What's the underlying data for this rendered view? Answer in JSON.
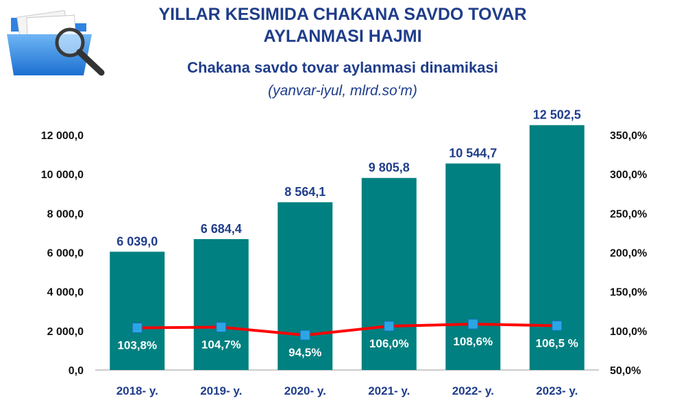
{
  "header": {
    "title_line1": "YILLAR KESIMIDA CHAKANA SAVDO TOVAR",
    "title_line2": "AYLANMASI HAJMI",
    "subtitle": "Chakana savdo tovar aylanmasi dinamikasi",
    "unit": "(yanvar-iyul, mlrd.so‘m)",
    "logo_icon": "folder-magnifier-icon"
  },
  "chart_data": {
    "type": "bar",
    "categories": [
      "2018- y.",
      "2019- y.",
      "2020- y.",
      "2021- y.",
      "2022- y.",
      "2023- y."
    ],
    "series": [
      {
        "type": "bar",
        "axis": "left",
        "values": [
          6039.0,
          6684.4,
          8564.1,
          9805.8,
          10544.7,
          12502.5
        ],
        "labels": [
          "6 039,0",
          "6 684,4",
          "8 564,1",
          "9 805,8",
          "10 544,7",
          "12 502,5"
        ],
        "color": "#008080"
      },
      {
        "type": "line",
        "axis": "right",
        "values": [
          103.8,
          104.7,
          94.5,
          106.0,
          108.6,
          106.5
        ],
        "labels": [
          "103,8%",
          "104,7%",
          "94,5%",
          "106,0%",
          "108,6%",
          "106,5 %"
        ],
        "color": "#ff0000",
        "marker_color": "#2aa6e6"
      }
    ],
    "y_left": {
      "min": 0,
      "max": 12000,
      "ticks": [
        "0,0",
        "2 000,0",
        "4 000,0",
        "6 000,0",
        "8 000,0",
        "10 000,0",
        "12 000,0"
      ]
    },
    "y_right": {
      "min": 50,
      "max": 350,
      "ticks": [
        "50,0%",
        "100,0%",
        "150,0%",
        "200,0%",
        "250,0%",
        "300,0%",
        "350,0%"
      ]
    },
    "grid": false,
    "legend": "none"
  }
}
